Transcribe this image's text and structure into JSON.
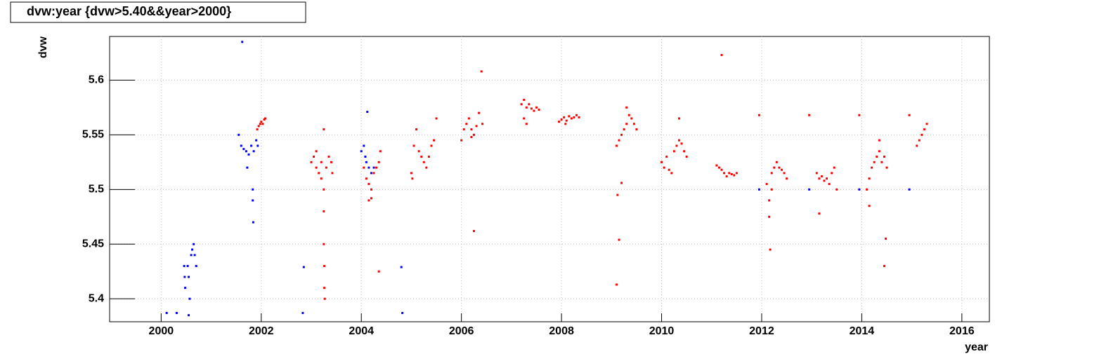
{
  "chart_data": {
    "type": "scatter",
    "title": "dvw:year {dvw>5.40&&year>2000}",
    "x_label": "year",
    "y_label": "dvw",
    "xlim": [
      1998.97,
      2016.55
    ],
    "ylim": [
      5.379,
      5.64
    ],
    "xticks": [
      2000,
      2002,
      2004,
      2006,
      2008,
      2010,
      2012,
      2014,
      2016
    ],
    "yticks": [
      5.4,
      5.45,
      5.5,
      5.55,
      5.6
    ],
    "grid": true,
    "series": [
      {
        "color": "#0000ff",
        "x": [
          2000.11,
          2000.31,
          2000.46,
          2000.47,
          2000.48,
          2000.53,
          2000.55,
          2000.57,
          2000.55,
          2000.6,
          2000.62,
          2000.65,
          2000.67,
          2000.7,
          2001.62,
          2001.55,
          2001.6,
          2001.65,
          2001.7,
          2001.75,
          2001.8,
          2001.85,
          2001.9,
          2001.93,
          2001.72,
          2001.83,
          2001.84,
          2001.83,
          2002.85,
          2002.83,
          2004.0,
          2004.05,
          2004.08,
          2004.1,
          2004.12,
          2004.15,
          2004.2,
          2004.25,
          2004.8,
          2004.82,
          2011.95,
          2012.95,
          2013.95,
          2014.95
        ],
        "values": [
          5.387,
          5.387,
          5.43,
          5.42,
          5.41,
          5.43,
          5.42,
          5.4,
          5.385,
          5.44,
          5.445,
          5.45,
          5.44,
          5.43,
          5.635,
          5.55,
          5.54,
          5.537,
          5.535,
          5.532,
          5.54,
          5.535,
          5.545,
          5.54,
          5.52,
          5.49,
          5.47,
          5.5,
          5.429,
          5.387,
          5.535,
          5.54,
          5.53,
          5.525,
          5.571,
          5.52,
          5.515,
          5.52,
          5.429,
          5.387,
          5.5,
          5.5,
          5.5,
          5.5
        ]
      },
      {
        "color": "#ff0000",
        "x": [
          2001.92,
          2001.95,
          2001.98,
          2002.0,
          2002.03,
          2002.06,
          2002.08,
          2003.0,
          2003.05,
          2003.1,
          2003.15,
          2003.2,
          2003.25,
          2003.25,
          2003.25,
          2003.26,
          2003.26,
          2003.27,
          2003.25,
          2003.3,
          2003.35,
          2003.4,
          2003.42,
          2003.1,
          2003.2,
          2004.05,
          2004.1,
          2004.15,
          2004.2,
          2004.25,
          2004.3,
          2004.35,
          2004.38,
          2004.35,
          2004.15,
          2004.2,
          2005.0,
          2005.05,
          2005.1,
          2005.15,
          2005.2,
          2005.25,
          2005.3,
          2005.35,
          2005.4,
          2005.45,
          2005.5,
          2005.02,
          2006.0,
          2006.05,
          2006.1,
          2006.15,
          2006.2,
          2006.25,
          2006.3,
          2006.35,
          2006.4,
          2006.42,
          2006.25,
          2006.2,
          2007.2,
          2007.25,
          2007.3,
          2007.35,
          2007.4,
          2007.45,
          2007.5,
          2007.55,
          2007.3,
          2007.25,
          2007.95,
          2008.0,
          2008.05,
          2008.1,
          2008.15,
          2008.2,
          2008.25,
          2008.3,
          2008.35,
          2008.08,
          2009.1,
          2009.15,
          2009.2,
          2009.25,
          2009.3,
          2009.35,
          2009.4,
          2009.45,
          2009.5,
          2009.1,
          2009.15,
          2009.12,
          2009.2,
          2009.3,
          2010.0,
          2010.05,
          2010.1,
          2010.15,
          2010.2,
          2010.25,
          2010.3,
          2010.35,
          2010.4,
          2010.45,
          2010.5,
          2010.35,
          2011.1,
          2011.15,
          2011.2,
          2011.25,
          2011.3,
          2011.35,
          2011.4,
          2011.45,
          2011.5,
          2011.2,
          2011.95,
          2012.1,
          2012.15,
          2012.2,
          2012.25,
          2012.3,
          2012.35,
          2012.4,
          2012.45,
          2012.5,
          2012.17,
          2012.15,
          2012.2,
          2012.95,
          2013.1,
          2013.15,
          2013.2,
          2013.25,
          2013.3,
          2013.35,
          2013.4,
          2013.45,
          2013.5,
          2013.15,
          2013.95,
          2014.1,
          2014.15,
          2014.2,
          2014.25,
          2014.3,
          2014.35,
          2014.4,
          2014.45,
          2014.5,
          2014.35,
          2014.45,
          2014.48,
          2014.15,
          2014.95,
          2015.1,
          2015.15,
          2015.2,
          2015.25,
          2015.3
        ],
        "values": [
          5.555,
          5.558,
          5.56,
          5.562,
          5.56,
          5.564,
          5.565,
          5.525,
          5.53,
          5.52,
          5.515,
          5.525,
          5.555,
          5.48,
          5.45,
          5.43,
          5.41,
          5.4,
          5.5,
          5.52,
          5.53,
          5.525,
          5.515,
          5.535,
          5.51,
          5.52,
          5.51,
          5.505,
          5.5,
          5.515,
          5.52,
          5.525,
          5.535,
          5.425,
          5.49,
          5.492,
          5.515,
          5.54,
          5.555,
          5.535,
          5.53,
          5.525,
          5.52,
          5.53,
          5.54,
          5.545,
          5.565,
          5.51,
          5.545,
          5.555,
          5.56,
          5.565,
          5.555,
          5.55,
          5.558,
          5.57,
          5.608,
          5.56,
          5.462,
          5.548,
          5.578,
          5.582,
          5.575,
          5.578,
          5.574,
          5.572,
          5.575,
          5.573,
          5.56,
          5.565,
          5.562,
          5.564,
          5.566,
          5.563,
          5.567,
          5.565,
          5.566,
          5.568,
          5.566,
          5.56,
          5.54,
          5.545,
          5.55,
          5.555,
          5.56,
          5.568,
          5.565,
          5.56,
          5.555,
          5.413,
          5.454,
          5.495,
          5.506,
          5.575,
          5.525,
          5.52,
          5.53,
          5.518,
          5.515,
          5.535,
          5.54,
          5.545,
          5.542,
          5.535,
          5.53,
          5.565,
          5.522,
          5.52,
          5.518,
          5.515,
          5.512,
          5.515,
          5.514,
          5.513,
          5.515,
          5.623,
          5.568,
          5.505,
          5.49,
          5.515,
          5.52,
          5.525,
          5.52,
          5.518,
          5.515,
          5.51,
          5.445,
          5.475,
          5.5,
          5.568,
          5.515,
          5.51,
          5.512,
          5.508,
          5.51,
          5.505,
          5.515,
          5.52,
          5.5,
          5.478,
          5.568,
          5.5,
          5.51,
          5.52,
          5.525,
          5.53,
          5.535,
          5.525,
          5.53,
          5.52,
          5.545,
          5.43,
          5.455,
          5.485,
          5.568,
          5.54,
          5.545,
          5.55,
          5.555,
          5.56
        ]
      }
    ]
  }
}
